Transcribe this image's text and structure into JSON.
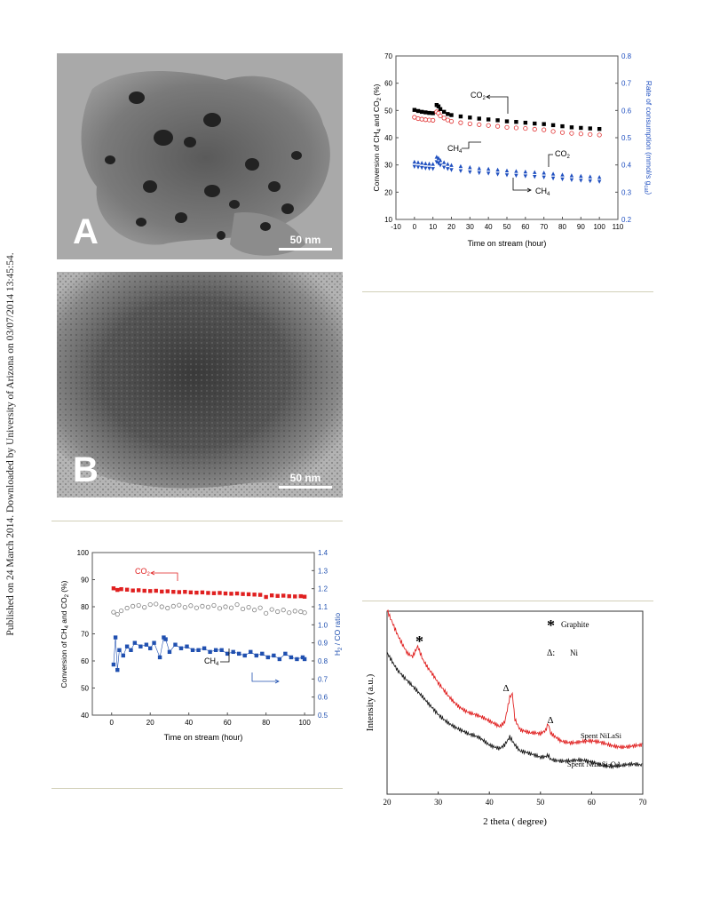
{
  "sidebar": {
    "text": "Published on 24 March 2014. Downloaded by University of Arizona on 03/07/2014 13:45:54."
  },
  "tem_a": {
    "letter": "A",
    "scale": "50 nm"
  },
  "tem_b": {
    "letter": "B",
    "scale": "50 nm"
  },
  "chart_data": [
    {
      "id": "stability-rate",
      "type": "scatter",
      "xlabel": "Time on stream (hour)",
      "ylabel": "Conversion of CH4 and CO2 (%)",
      "y2label": "Rate of consumption (mmol/s gcat)",
      "xlim": [
        -10,
        110
      ],
      "ylim": [
        10,
        70
      ],
      "y2lim": [
        0.2,
        0.8
      ],
      "xticks": [
        -10,
        0,
        10,
        20,
        30,
        40,
        50,
        60,
        70,
        80,
        90,
        100,
        110
      ],
      "yticks": [
        10,
        20,
        30,
        40,
        50,
        60,
        70
      ],
      "y2ticks": [
        0.2,
        0.3,
        0.4,
        0.5,
        0.6,
        0.7,
        0.8
      ],
      "annotations": [
        "CO2",
        "CH4",
        "CO2",
        "CH4"
      ],
      "series": [
        {
          "name": "CO2",
          "axis": "left",
          "color": "#000000",
          "marker": "square-filled",
          "x": [
            0,
            2,
            4,
            6,
            8,
            10,
            12,
            13,
            14,
            16,
            18,
            20,
            25,
            30,
            35,
            40,
            45,
            50,
            55,
            60,
            65,
            70,
            75,
            80,
            85,
            90,
            95,
            100
          ],
          "y": [
            50.2,
            49.8,
            49.5,
            49.3,
            49.1,
            49.0,
            52.0,
            51.5,
            50.5,
            49.5,
            48.7,
            48.3,
            47.8,
            47.4,
            47.0,
            46.7,
            46.4,
            46.0,
            45.8,
            45.5,
            45.2,
            45.0,
            44.6,
            44.2,
            43.8,
            43.6,
            43.4,
            43.2
          ]
        },
        {
          "name": "CH4",
          "axis": "left",
          "color": "#e03030",
          "marker": "circle-open",
          "x": [
            0,
            2,
            4,
            6,
            8,
            10,
            12,
            13,
            14,
            16,
            18,
            20,
            25,
            30,
            35,
            40,
            45,
            50,
            55,
            60,
            65,
            70,
            75,
            80,
            85,
            90,
            95,
            100
          ],
          "y": [
            47.5,
            47.0,
            46.8,
            46.6,
            46.5,
            46.4,
            49.5,
            49.0,
            48.0,
            47.2,
            46.5,
            46.0,
            45.5,
            45.1,
            44.8,
            44.5,
            44.2,
            43.8,
            43.6,
            43.4,
            43.1,
            42.9,
            42.3,
            41.9,
            41.6,
            41.4,
            41.2,
            41.0
          ]
        },
        {
          "name": "CO2",
          "axis": "right",
          "color": "#2050c0",
          "marker": "triangle-filled",
          "x": [
            0,
            2,
            4,
            6,
            8,
            10,
            12,
            13,
            14,
            16,
            18,
            20,
            25,
            30,
            35,
            40,
            45,
            50,
            55,
            60,
            65,
            70,
            75,
            80,
            85,
            90,
            95,
            100
          ],
          "y": [
            0.412,
            0.41,
            0.408,
            0.406,
            0.405,
            0.404,
            0.43,
            0.426,
            0.418,
            0.41,
            0.404,
            0.4,
            0.396,
            0.392,
            0.388,
            0.386,
            0.383,
            0.38,
            0.378,
            0.376,
            0.374,
            0.372,
            0.368,
            0.365,
            0.362,
            0.36,
            0.358,
            0.356
          ]
        },
        {
          "name": "CH4",
          "axis": "right",
          "color": "#2050c0",
          "marker": "triangle-down-filled",
          "x": [
            0,
            2,
            4,
            6,
            8,
            10,
            12,
            13,
            14,
            16,
            18,
            20,
            25,
            30,
            35,
            40,
            45,
            50,
            55,
            60,
            65,
            70,
            75,
            80,
            85,
            90,
            95,
            100
          ],
          "y": [
            0.393,
            0.391,
            0.389,
            0.387,
            0.386,
            0.385,
            0.41,
            0.405,
            0.398,
            0.39,
            0.385,
            0.381,
            0.377,
            0.373,
            0.37,
            0.368,
            0.365,
            0.362,
            0.36,
            0.358,
            0.356,
            0.354,
            0.35,
            0.347,
            0.344,
            0.342,
            0.34,
            0.338
          ]
        }
      ]
    },
    {
      "id": "stability-h2co",
      "type": "scatter",
      "xlabel": "Time on stream (hour)",
      "ylabel": "Conversion of CH4 and CO2 (%)",
      "y2label": "H2 / CO ratio",
      "xlim": [
        -10,
        105
      ],
      "ylim": [
        40,
        100
      ],
      "y2lim": [
        0.5,
        1.4
      ],
      "xticks": [
        0,
        20,
        40,
        60,
        80,
        100
      ],
      "yticks": [
        40,
        50,
        60,
        70,
        80,
        90,
        100
      ],
      "y2ticks": [
        0.5,
        0.6,
        0.7,
        0.8,
        0.9,
        1.0,
        1.1,
        1.2,
        1.3,
        1.4
      ],
      "annotations": [
        "CO2",
        "CH4"
      ],
      "series": [
        {
          "name": "CO2",
          "axis": "left",
          "color": "#e02020",
          "marker": "square-filled",
          "x": [
            1,
            3,
            5,
            8,
            11,
            14,
            17,
            20,
            23,
            26,
            29,
            32,
            35,
            38,
            41,
            44,
            47,
            50,
            53,
            56,
            59,
            62,
            65,
            68,
            71,
            74,
            77,
            80,
            83,
            86,
            89,
            92,
            95,
            98,
            100
          ],
          "y": [
            86.8,
            86.2,
            86.5,
            86.3,
            86.0,
            86.1,
            85.9,
            85.8,
            85.9,
            85.6,
            85.7,
            85.5,
            85.4,
            85.5,
            85.3,
            85.2,
            85.3,
            85.1,
            85.0,
            85.1,
            84.9,
            84.8,
            84.9,
            84.7,
            84.6,
            84.5,
            84.4,
            83.6,
            84.2,
            84.0,
            84.1,
            83.9,
            83.8,
            83.9,
            83.7
          ]
        },
        {
          "name": "CH4",
          "axis": "left",
          "color": "#808080",
          "marker": "circle-open",
          "x": [
            1,
            3,
            5,
            8,
            11,
            14,
            17,
            20,
            23,
            26,
            29,
            32,
            35,
            38,
            41,
            44,
            47,
            50,
            53,
            56,
            59,
            62,
            65,
            68,
            71,
            74,
            77,
            80,
            83,
            86,
            89,
            92,
            95,
            98,
            100
          ],
          "y": [
            78.0,
            77.2,
            78.5,
            79.5,
            80.2,
            80.5,
            79.8,
            80.8,
            81.0,
            80.0,
            79.5,
            80.2,
            80.6,
            79.8,
            80.4,
            79.6,
            80.2,
            79.9,
            80.5,
            79.4,
            80.0,
            79.6,
            80.8,
            79.2,
            79.8,
            78.8,
            79.6,
            77.6,
            79.0,
            78.2,
            78.8,
            77.8,
            78.4,
            78.2,
            77.8
          ]
        },
        {
          "name": "H2/CO",
          "axis": "right",
          "color": "#2050b0",
          "marker": "square-filled",
          "x": [
            1,
            2,
            3,
            4,
            6,
            8,
            10,
            12,
            15,
            18,
            20,
            22,
            25,
            27,
            28,
            30,
            33,
            36,
            39,
            42,
            45,
            48,
            51,
            54,
            57,
            60,
            63,
            66,
            69,
            72,
            75,
            78,
            81,
            84,
            87,
            90,
            93,
            96,
            99,
            100
          ],
          "y": [
            0.78,
            0.93,
            0.75,
            0.86,
            0.83,
            0.88,
            0.86,
            0.9,
            0.88,
            0.89,
            0.87,
            0.9,
            0.82,
            0.93,
            0.92,
            0.85,
            0.89,
            0.87,
            0.88,
            0.86,
            0.86,
            0.87,
            0.85,
            0.86,
            0.86,
            0.84,
            0.85,
            0.84,
            0.83,
            0.85,
            0.83,
            0.84,
            0.82,
            0.83,
            0.81,
            0.84,
            0.82,
            0.81,
            0.82,
            0.81
          ]
        }
      ]
    },
    {
      "id": "xrd",
      "type": "line",
      "xlabel": "2 theta ( degree)",
      "ylabel": "Intensity (a.u.)",
      "xlim": [
        20,
        70
      ],
      "xticks": [
        20,
        30,
        40,
        50,
        60,
        70
      ],
      "legend": [
        {
          "symbol": "*",
          "label": "Graphite"
        },
        {
          "symbol": "Δ:",
          "label": "Ni"
        }
      ],
      "annotations": [
        "*",
        "Δ",
        "Δ"
      ],
      "series": [
        {
          "name": "Spent NiLaSi",
          "color": "#e02020",
          "x": [
            20,
            22,
            24,
            25,
            26,
            27,
            28,
            30,
            32,
            34,
            36,
            38,
            40,
            42,
            43,
            44,
            44.5,
            45,
            46,
            48,
            50,
            51,
            51.5,
            52,
            54,
            56,
            60,
            65,
            70
          ],
          "y": [
            1.0,
            0.88,
            0.78,
            0.76,
            0.81,
            0.73,
            0.68,
            0.6,
            0.54,
            0.49,
            0.45,
            0.42,
            0.39,
            0.37,
            0.4,
            0.54,
            0.56,
            0.42,
            0.36,
            0.33,
            0.32,
            0.34,
            0.38,
            0.33,
            0.3,
            0.29,
            0.28,
            0.27,
            0.26
          ]
        },
        {
          "name": "Spent NiLaSi-OA",
          "color": "#1a1a1a",
          "x": [
            20,
            22,
            24,
            26,
            28,
            30,
            32,
            34,
            36,
            38,
            40,
            42,
            43,
            44,
            45,
            46,
            48,
            50,
            51,
            51.5,
            52,
            54,
            56,
            60,
            65,
            70
          ],
          "y": [
            0.78,
            0.69,
            0.62,
            0.55,
            0.49,
            0.44,
            0.4,
            0.36,
            0.32,
            0.3,
            0.27,
            0.26,
            0.28,
            0.32,
            0.27,
            0.23,
            0.21,
            0.2,
            0.21,
            0.22,
            0.2,
            0.19,
            0.18,
            0.17,
            0.16,
            0.15
          ]
        }
      ]
    }
  ]
}
